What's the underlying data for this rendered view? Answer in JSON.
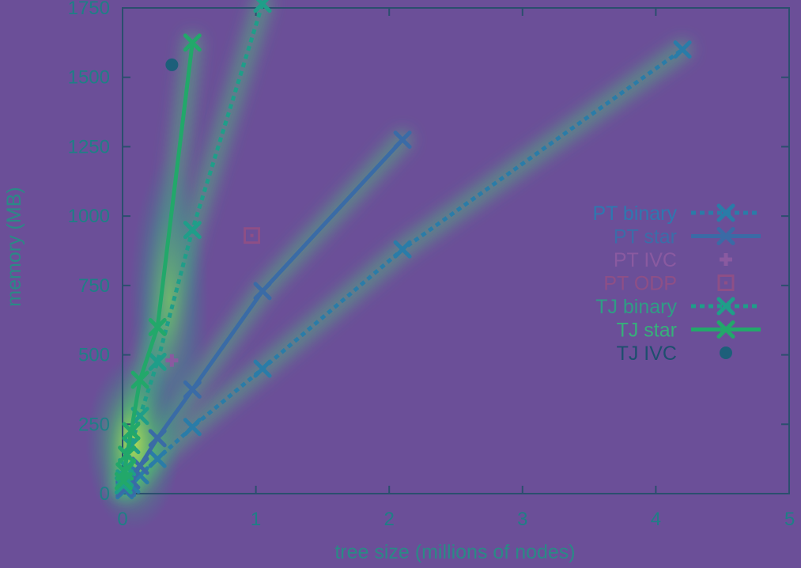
{
  "chart_data": {
    "type": "line",
    "title": "",
    "xlabel": "tree size (millions of nodes)",
    "ylabel": "memory (MB)",
    "xlim": [
      0,
      5
    ],
    "ylim": [
      0,
      1750
    ],
    "x_ticks": [
      "0",
      "1",
      "2",
      "3",
      "4",
      "5"
    ],
    "y_ticks": [
      "0",
      "250",
      "500",
      "750",
      "1000",
      "1250",
      "1500",
      "1750"
    ],
    "grid": false,
    "legend_position": "right",
    "series": [
      {
        "name": "PT binary",
        "style": "dotted-line-x",
        "color": "#2a7ca8",
        "x": [
          0.016,
          0.033,
          0.065,
          0.131,
          0.262,
          0.524,
          1.05,
          2.1,
          4.2
        ],
        "y": [
          12,
          20,
          32,
          66,
          125,
          240,
          450,
          880,
          1600
        ]
      },
      {
        "name": "PT star",
        "style": "solid-line-x",
        "color": "#3a6ba6",
        "x": [
          0.016,
          0.033,
          0.065,
          0.131,
          0.262,
          0.524,
          1.05,
          2.1
        ],
        "y": [
          18,
          28,
          48,
          100,
          200,
          375,
          730,
          1275
        ]
      },
      {
        "name": "PT IVC",
        "style": "plus",
        "color": "#8a5aa0",
        "x": [
          0.37
        ],
        "y": [
          480
        ]
      },
      {
        "name": "PT ODP",
        "style": "square-dot",
        "color": "#8e4f86",
        "x": [
          0.97
        ],
        "y": [
          930
        ]
      },
      {
        "name": "TJ binary",
        "style": "dotted-line-x",
        "color": "#1f9e89",
        "x": [
          0.008,
          0.016,
          0.033,
          0.065,
          0.131,
          0.262,
          0.524,
          1.05
        ],
        "y": [
          30,
          55,
          95,
          175,
          280,
          475,
          950,
          1765
        ]
      },
      {
        "name": "TJ star",
        "style": "solid-line-x",
        "color": "#22a86a",
        "x": [
          0.008,
          0.016,
          0.033,
          0.065,
          0.131,
          0.262,
          0.524
        ],
        "y": [
          45,
          80,
          140,
          225,
          410,
          600,
          1625
        ]
      },
      {
        "name": "TJ IVC",
        "style": "filled-circle",
        "color": "#1d5f7a",
        "x": [
          0.37
        ],
        "y": [
          1545
        ]
      }
    ]
  }
}
